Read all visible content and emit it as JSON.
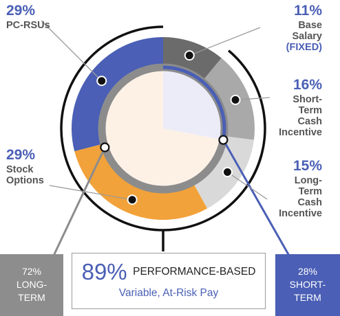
{
  "chart_data": {
    "type": "pie",
    "variant": "donut",
    "slices": [
      {
        "pct_label": "11%",
        "label_lines": [
          "Base",
          "Salary"
        ],
        "note": "(FIXED)",
        "value": 11,
        "color": "#6b6b6b"
      },
      {
        "pct_label": "16%",
        "label_lines": [
          "Short-",
          "Term",
          "Cash",
          "Incentive"
        ],
        "value": 16,
        "color": "#a9a9a9"
      },
      {
        "pct_label": "15%",
        "label_lines": [
          "Long-",
          "Term",
          "Cash",
          "Incentive"
        ],
        "value": 15,
        "color": "#d9d9d9"
      },
      {
        "pct_label": "29%",
        "label_lines": [
          "Stock",
          "Options"
        ],
        "value": 29,
        "color": "#f2a23a"
      },
      {
        "pct_label": "29%",
        "label_lines": [
          "PC-RSUs"
        ],
        "value": 29,
        "color": "#4a5fb5"
      }
    ],
    "inner_split": {
      "short_term": {
        "value": 28,
        "color": "#ececf8"
      },
      "long_term": {
        "value": 72,
        "color": "#fdf1e6"
      }
    }
  },
  "boxes": {
    "long_term": {
      "pct": "72%",
      "line1": "LONG-",
      "line2": "TERM"
    },
    "short_term": {
      "pct": "28%",
      "line1": "SHORT-",
      "line2": "TERM"
    },
    "performance": {
      "pct": "89%",
      "text": "PERFORMANCE-BASED",
      "sub": "Variable, At-Risk Pay"
    }
  }
}
